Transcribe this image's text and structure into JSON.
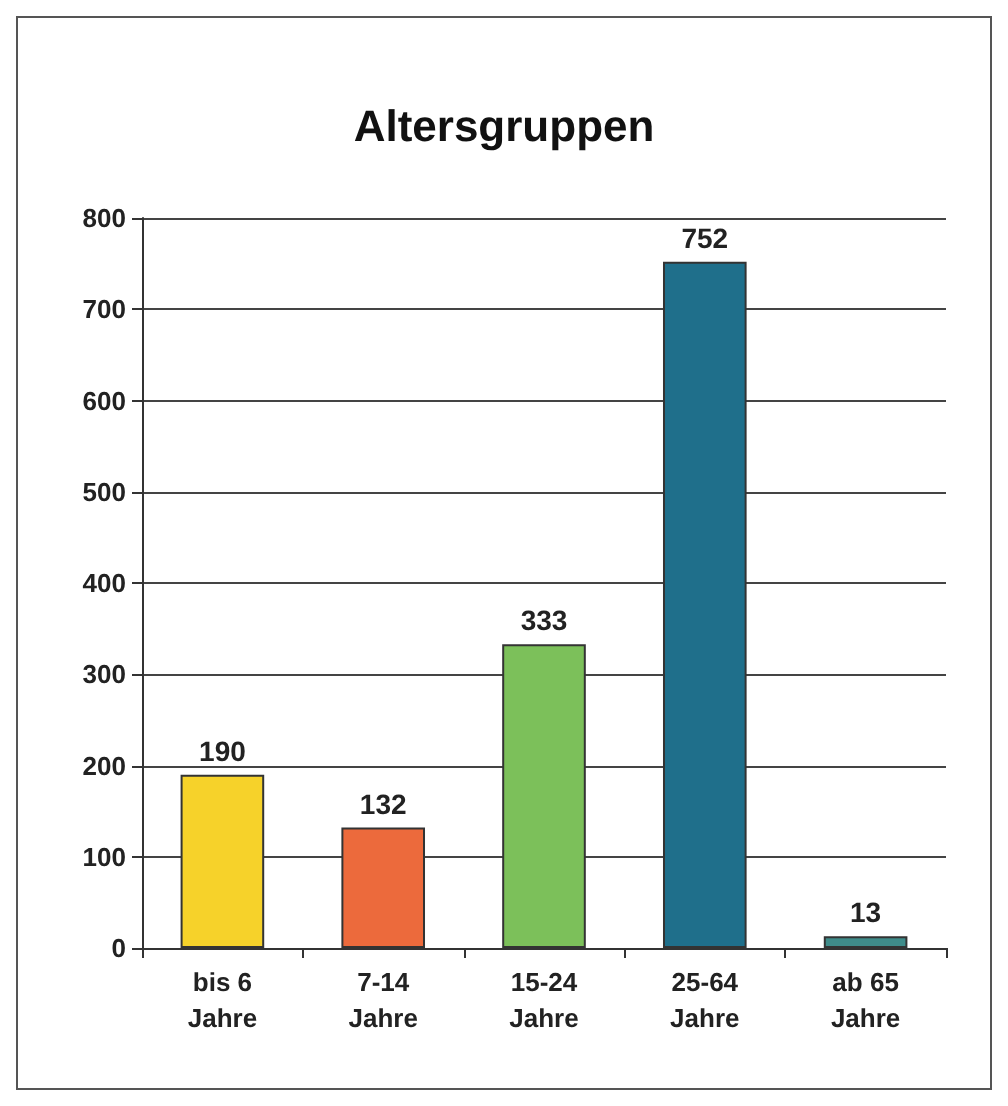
{
  "chart_data": {
    "type": "bar",
    "title": "Altersgruppen",
    "categories": [
      "bis 6 Jahre",
      "7-14 Jahre",
      "15-24 Jahre",
      "25-64 Jahre",
      "ab 65 Jahre"
    ],
    "values": [
      190,
      132,
      333,
      752,
      13
    ],
    "colors": [
      "#f6d22a",
      "#ec6a3c",
      "#7cc05a",
      "#1f6f8b",
      "#3f8c8a"
    ],
    "ylim": [
      0,
      800
    ],
    "yticks": [
      0,
      100,
      200,
      300,
      400,
      500,
      600,
      700,
      800
    ],
    "grid": "y",
    "data_labels": true
  }
}
